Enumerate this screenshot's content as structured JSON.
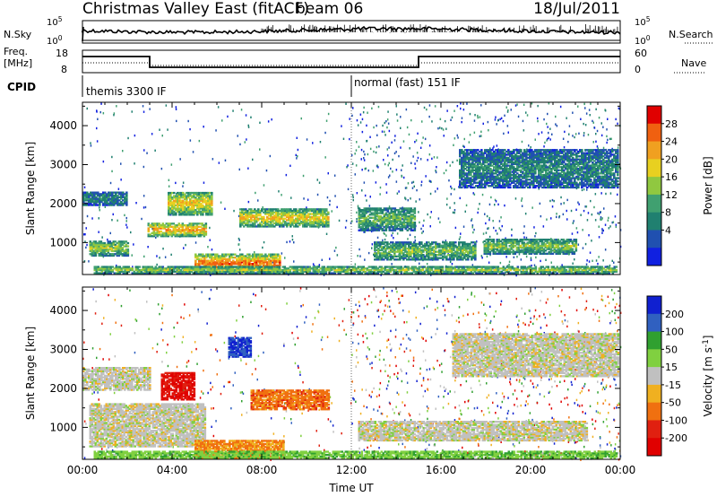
{
  "header": {
    "station": "Christmas Valley East (fitACF)",
    "beam": "beam 06",
    "date": "18/Jul/2011"
  },
  "top_panels": {
    "nsky_label": "N.Sky",
    "nsearch_label": "N.Search",
    "nsky_ticks": [
      "10^5",
      "10^0"
    ],
    "nsearch_ticks": [
      "10^5",
      "10^0"
    ],
    "freq_label": "Freq.",
    "freq_unit": "[MHz]",
    "freq_ticks": [
      "18",
      "8"
    ],
    "nave_label": "Nave",
    "nave_ticks": [
      "60",
      "0"
    ],
    "cpid_label": "CPID",
    "modes": [
      "themis 3300 IF",
      "normal (fast) 151 IF"
    ]
  },
  "chart_data": [
    {
      "type": "heatmap",
      "name": "power",
      "ylabel": "Slant Range [km]",
      "ylim": [
        180,
        4600
      ],
      "yticks": [
        1000,
        2000,
        3000,
        4000
      ],
      "x_ticks": [
        "00:00",
        "04:00",
        "08:00",
        "12:00",
        "16:00",
        "20:00",
        "00:00"
      ],
      "colorbar_label": "Power [dB]",
      "colorbar_ticks": [
        "28",
        "24",
        "20",
        "16",
        "12",
        "8",
        "4"
      ],
      "colorbar_colors": [
        "#e00000",
        "#f06010",
        "#f0a020",
        "#e8d020",
        "#90c840",
        "#40a070",
        "#208070",
        "#2050b0",
        "#1020e0"
      ],
      "features": [
        {
          "t0": 0.3,
          "t1": 2.0,
          "r0": 650,
          "r1": 1050,
          "level": 0.55
        },
        {
          "t0": 0.0,
          "t1": 2.0,
          "r0": 1950,
          "r1": 2300,
          "level": 0.3
        },
        {
          "t0": 2.9,
          "t1": 5.5,
          "r0": 1150,
          "r1": 1500,
          "level": 0.8
        },
        {
          "t0": 3.8,
          "t1": 5.8,
          "r0": 1700,
          "r1": 2300,
          "level": 0.7
        },
        {
          "t0": 5.0,
          "t1": 8.8,
          "r0": 200,
          "r1": 700,
          "level": 0.9
        },
        {
          "t0": 7.0,
          "t1": 11.0,
          "r0": 1400,
          "r1": 1850,
          "level": 0.7
        },
        {
          "t0": 0.5,
          "t1": 23.8,
          "r0": 200,
          "r1": 380,
          "level": 0.55
        },
        {
          "t0": 12.3,
          "t1": 14.8,
          "r0": 1300,
          "r1": 1900,
          "level": 0.45
        },
        {
          "t0": 13.0,
          "t1": 17.5,
          "r0": 550,
          "r1": 1000,
          "level": 0.5
        },
        {
          "t0": 17.9,
          "t1": 22.0,
          "r0": 700,
          "r1": 1100,
          "level": 0.5
        },
        {
          "t0": 16.8,
          "t1": 23.9,
          "r0": 2400,
          "r1": 3400,
          "level": 0.3
        }
      ]
    },
    {
      "type": "heatmap",
      "name": "velocity",
      "ylabel": "Slant Range [km]",
      "ylim": [
        180,
        4600
      ],
      "yticks": [
        1000,
        2000,
        3000,
        4000
      ],
      "x_ticks": [
        "00:00",
        "04:00",
        "08:00",
        "12:00",
        "16:00",
        "20:00",
        "00:00"
      ],
      "xlabel": "Time UT",
      "colorbar_label": "Velocity [m s^-1]",
      "colorbar_ticks": [
        "200",
        "100",
        "50",
        "15",
        "-15",
        "-50",
        "-100",
        "-200"
      ],
      "colorbar_colors": [
        "#1020d0",
        "#3060c0",
        "#30a030",
        "#80d040",
        "#c0c0c0",
        "#f0b020",
        "#f07010",
        "#e02010",
        "#e00000"
      ],
      "features": [
        {
          "t0": 0.0,
          "t1": 3.0,
          "r0": 1950,
          "r1": 2550,
          "level": 0.5
        },
        {
          "t0": 0.3,
          "t1": 5.5,
          "r0": 500,
          "r1": 1600,
          "level": 0.5
        },
        {
          "t0": 3.5,
          "t1": 5.0,
          "r0": 1700,
          "r1": 2400,
          "level": 0.05
        },
        {
          "t0": 7.5,
          "t1": 11.0,
          "r0": 1450,
          "r1": 1950,
          "level": 0.25
        },
        {
          "t0": 5.0,
          "t1": 9.0,
          "r0": 200,
          "r1": 650,
          "level": 0.3
        },
        {
          "t0": 0.5,
          "t1": 23.8,
          "r0": 200,
          "r1": 380,
          "level": 0.65
        },
        {
          "t0": 12.3,
          "t1": 22.5,
          "r0": 650,
          "r1": 1150,
          "level": 0.5
        },
        {
          "t0": 16.5,
          "t1": 23.9,
          "r0": 2300,
          "r1": 3400,
          "level": 0.5
        },
        {
          "t0": 6.5,
          "t1": 7.5,
          "r0": 2800,
          "r1": 3300,
          "level": 0.95
        }
      ]
    }
  ]
}
